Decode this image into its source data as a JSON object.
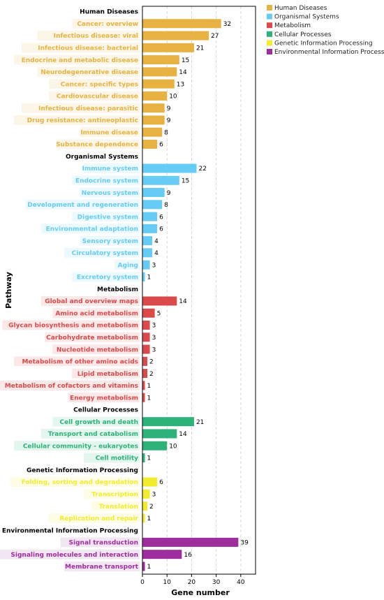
{
  "chart_data": {
    "type": "bar",
    "orientation": "horizontal",
    "xlabel": "Gene number",
    "ylabel": "Pathway",
    "xlim": [
      0,
      46
    ],
    "xticks": [
      0,
      10,
      20,
      30,
      40
    ],
    "grid": "x-dashed",
    "legend_position": "top-right",
    "groups": [
      {
        "name": "Human Diseases",
        "color": "#E8B242",
        "categories": [
          "Cancer: overview",
          "Infectious disease: viral",
          "Infectious disease: bacterial",
          "Endocrine and metabolic disease",
          "Neurodegenerative disease",
          "Cancer: specific types",
          "Cardiovascular disease",
          "Infectious disease: parasitic",
          "Drug resistance: antineoplastic",
          "Immune disease",
          "Substance dependence"
        ],
        "values": [
          32,
          27,
          21,
          15,
          14,
          13,
          10,
          9,
          9,
          8,
          6
        ]
      },
      {
        "name": "Organismal Systems",
        "color": "#66CCF5",
        "categories": [
          "Immune system",
          "Endocrine system",
          "Nervous system",
          "Development and regeneration",
          "Digestive system",
          "Environmental adaptation",
          "Sensory system",
          "Circulatory system",
          "Aging",
          "Excretory system"
        ],
        "values": [
          22,
          15,
          9,
          8,
          6,
          6,
          4,
          4,
          3,
          1
        ]
      },
      {
        "name": "Metabolism",
        "color": "#DB4A4A",
        "categories": [
          "Global and overview maps",
          "Amino acid metabolism",
          "Glycan biosynthesis and metabolism",
          "Carbohydrate metabolism",
          "Nucleotide metabolism",
          "Metabolism of other amino acids",
          "Lipid metabolism",
          "Metabolism of cofactors and vitamins",
          "Energy metabolism"
        ],
        "values": [
          14,
          5,
          3,
          3,
          3,
          2,
          2,
          1,
          1
        ]
      },
      {
        "name": "Cellular Processes",
        "color": "#2DB37A",
        "categories": [
          "Cell growth and death",
          "Transport and catabolism",
          "Cellular community - eukaryotes",
          "Cell motility"
        ],
        "values": [
          21,
          14,
          10,
          1
        ]
      },
      {
        "name": "Genetic Information Processing",
        "color": "#F2EC2E",
        "categories": [
          "Folding, sorting and degradation",
          "Transcription",
          "Translation",
          "Replication and repair"
        ],
        "values": [
          6,
          3,
          2,
          1
        ]
      },
      {
        "name": "Environmental Information Processing",
        "color": "#9E2E9E",
        "categories": [
          "Signal transduction",
          "Signaling molecules and interaction",
          "Membrane transport"
        ],
        "values": [
          39,
          16,
          1
        ]
      }
    ],
    "legend": [
      "Human Diseases",
      "Organismal Systems",
      "Metabolism",
      "Cellular Processes",
      "Genetic Information Processing",
      "Environmental Information Processing"
    ]
  }
}
